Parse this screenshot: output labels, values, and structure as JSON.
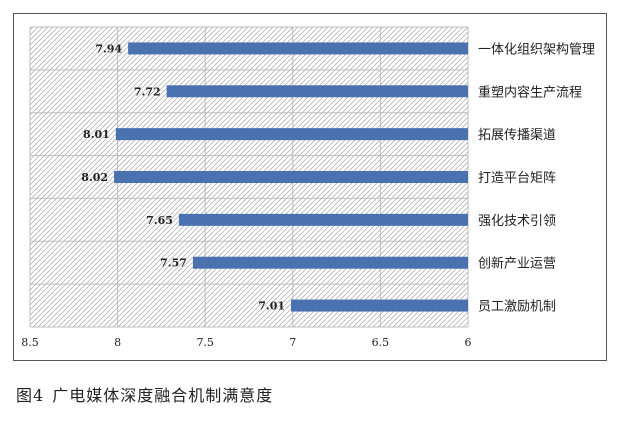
{
  "chart_data": {
    "type": "bar",
    "orientation": "horizontal",
    "categories": [
      "一体化组织架构管理",
      "重塑内容生产流程",
      "拓展传播渠道",
      "打造平台矩阵",
      "强化技术引领",
      "创新产业运营",
      "员工激励机制"
    ],
    "values": [
      7.94,
      7.72,
      8.01,
      8.02,
      7.65,
      7.57,
      7.01
    ],
    "data_labels": [
      "7.94",
      "7.72",
      "8.01",
      "8.02",
      "7.65",
      "7.57",
      "7.01"
    ],
    "x_ticks": [
      "8.5",
      "8",
      "7.5",
      "7",
      "6.5",
      "6"
    ],
    "xlim": [
      8.5,
      6
    ],
    "x_reversed": true,
    "grid": true,
    "bar_color": "#4a72b0"
  },
  "caption": {
    "figure_number": "图4",
    "title": "广电媒体深度融合机制满意度"
  }
}
